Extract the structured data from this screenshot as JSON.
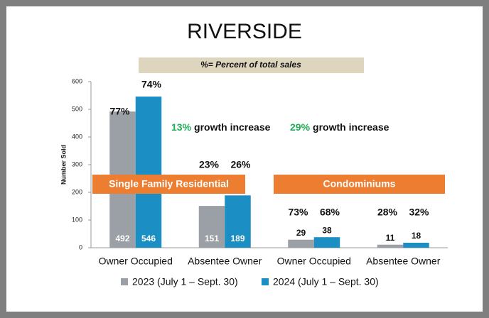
{
  "chart_data": {
    "type": "bar",
    "title": "RIVERSIDE",
    "subtitle": "%= Percent of total sales",
    "y_label": "Number Sold",
    "categories": [
      "Owner Occupied",
      "Absentee Owner",
      "Owner Occupied",
      "Absentee Owner"
    ],
    "series": [
      {
        "name": "2023 (July 1 – Sept. 30)",
        "color": "#9aa0a6",
        "values": [
          492,
          151,
          29,
          11
        ]
      },
      {
        "name": "2024 (July 1 – Sept. 30)",
        "color": "#1b8ec4",
        "values": [
          546,
          189,
          38,
          18
        ]
      }
    ],
    "percent_labels": [
      [
        "77%",
        "23%",
        "73%",
        "28%"
      ],
      [
        "74%",
        "26%",
        "68%",
        "32%"
      ]
    ],
    "annotations": [
      {
        "highlight": "13%",
        "text": "growth increase"
      },
      {
        "highlight": "29%",
        "text": "growth increase"
      }
    ],
    "banners": [
      "Single Family Residential",
      "Condominiums"
    ],
    "ylim": [
      0,
      600
    ],
    "yticks": [
      0,
      100,
      200,
      300,
      400,
      500,
      600
    ],
    "grid": false,
    "legend": "bottom"
  }
}
